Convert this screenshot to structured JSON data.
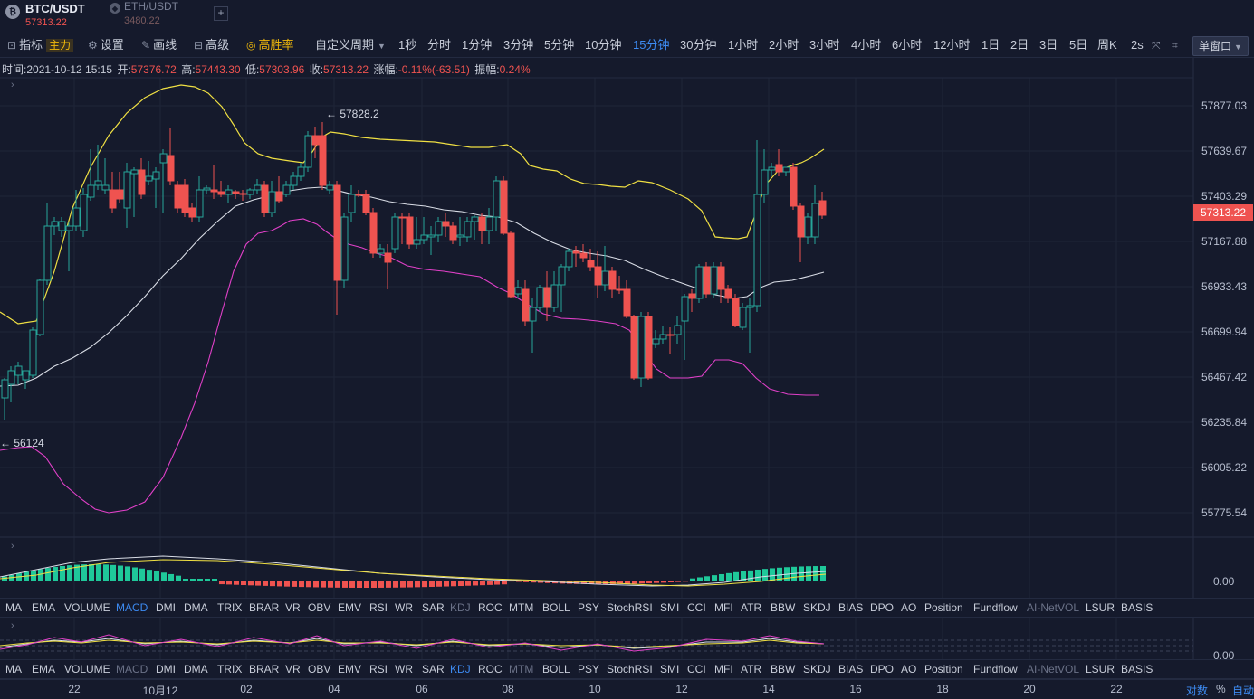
{
  "header": {
    "active_symbol": {
      "name": "BTC/USDT",
      "price": "57313.22",
      "icon": "btc-icon"
    },
    "other_symbol": {
      "name": "ETH/USDT",
      "price": "3480.22",
      "icon": "eth-icon"
    },
    "add_tab": "+"
  },
  "toolbar": {
    "indicator": "指标",
    "main_tag": "主力",
    "settings": "设置",
    "draw": "画线",
    "advanced": "高级",
    "win_rate": "高胜率",
    "custom_period": "自定义周期",
    "periods": [
      "1秒",
      "分时",
      "1分钟",
      "3分钟",
      "5分钟",
      "10分钟",
      "15分钟",
      "30分钟",
      "1小时",
      "2小时",
      "3小时",
      "4小时",
      "6小时",
      "12小时",
      "1日",
      "2日",
      "3日",
      "5日",
      "周K",
      "2s"
    ],
    "active_period": "15分钟",
    "window_mode": "单窗口"
  },
  "info_bar": {
    "time_label": "时间:",
    "time": "2021-10-12 15:15",
    "open_label": "开:",
    "open": "57376.72",
    "high_label": "高:",
    "high": "57443.30",
    "low_label": "低:",
    "low": "57303.96",
    "close_label": "收:",
    "close": "57313.22",
    "change_label": "涨幅:",
    "change": "-0.11%(-63.51)",
    "amp_label": "振幅:",
    "amplitude": "0.24%"
  },
  "price_axis": [
    "57877.03",
    "57639.67",
    "57403.29",
    "57167.88",
    "56933.43",
    "56699.94",
    "56467.42",
    "56235.84",
    "56005.22",
    "55775.54"
  ],
  "last_price": "57313.22",
  "markers": {
    "high": "← 57828.2",
    "low": "← 56124"
  },
  "sub_axis_value": "0.00",
  "indicators": [
    "MA",
    "EMA",
    "VOLUME",
    "MACD",
    "DMI",
    "DMA",
    "TRIX",
    "BRAR",
    "VR",
    "OBV",
    "EMV",
    "RSI",
    "WR",
    "SAR",
    "KDJ",
    "ROC",
    "MTM",
    "BOLL",
    "PSY",
    "StochRSI",
    "SMI",
    "CCI",
    "MFI",
    "ATR",
    "BBW",
    "SKDJ",
    "BIAS",
    "DPO",
    "AO",
    "Position",
    "Fundflow",
    "AI-NetVOL",
    "LSUR",
    "BASIS"
  ],
  "indicator_row1": {
    "active": "MACD",
    "dim": [
      "KDJ",
      "AI-NetVOL"
    ]
  },
  "indicator_row2": {
    "active": "KDJ",
    "dim": [
      "MACD",
      "MTM",
      "AI-NetVOL"
    ]
  },
  "x_axis": [
    "22",
    "10月12",
    "02",
    "04",
    "06",
    "08",
    "10",
    "12",
    "14",
    "16",
    "18",
    "20",
    "22"
  ],
  "axis_mode": {
    "log": "对数",
    "percent": "%",
    "auto": "自动"
  },
  "colors": {
    "up": "#26a69a",
    "down": "#ef5350",
    "upper_band": "#f0e043",
    "mid_band": "#d9dde6",
    "lower_band": "#e040c8",
    "accent": "#3d8bf2"
  }
}
